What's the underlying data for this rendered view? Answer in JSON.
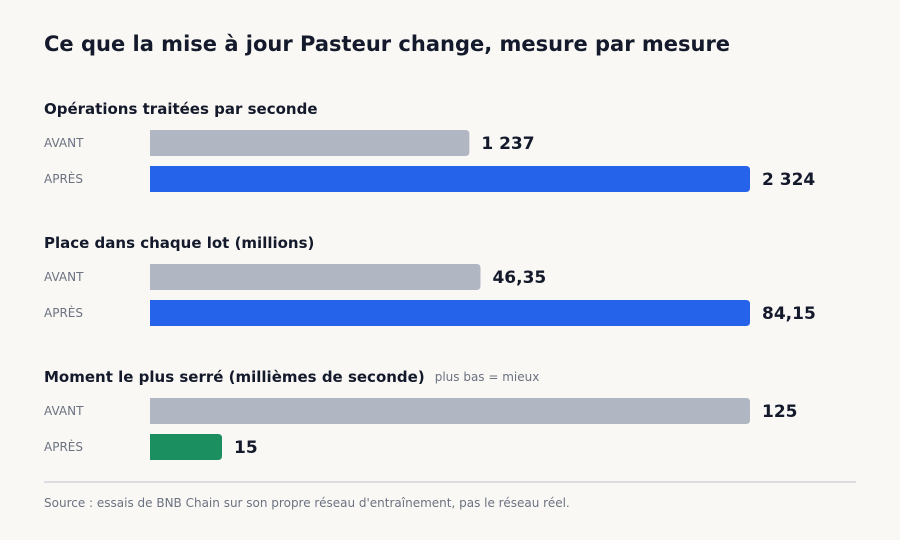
{
  "title": "Ce que la mise à jour Pasteur change, mesure par mesure",
  "source": "Source : essais de BNB Chain sur son propre réseau d'entraînement, pas le réseau réel.",
  "colors": {
    "before": "#b0b7c3",
    "after": "#2563eb",
    "after_improved_lower": "#1b8f5f",
    "text": "#141a2b",
    "muted": "#6b7280"
  },
  "chart_data": {
    "type": "bar",
    "orientation": "horizontal",
    "title": "Ce que la mise à jour Pasteur change, mesure par mesure",
    "groups": [
      {
        "title": "Opérations traitées par seconde",
        "note": "",
        "rows": [
          {
            "label": "AVANT",
            "value": 1237,
            "display": "1 237",
            "color_key": "before"
          },
          {
            "label": "APRÈS",
            "value": 2324,
            "display": "2 324",
            "color_key": "after"
          }
        ]
      },
      {
        "title": "Place dans chaque lot (millions)",
        "note": "",
        "rows": [
          {
            "label": "AVANT",
            "value": 46.35,
            "display": "46,35",
            "color_key": "before"
          },
          {
            "label": "APRÈS",
            "value": 84.15,
            "display": "84,15",
            "color_key": "after"
          }
        ]
      },
      {
        "title": "Moment le plus serré (millièmes de seconde)",
        "note": "plus bas = mieux",
        "rows": [
          {
            "label": "AVANT",
            "value": 125,
            "display": "125",
            "color_key": "before"
          },
          {
            "label": "APRÈS",
            "value": 15,
            "display": "15",
            "color_key": "after_improved_lower"
          }
        ]
      }
    ]
  }
}
